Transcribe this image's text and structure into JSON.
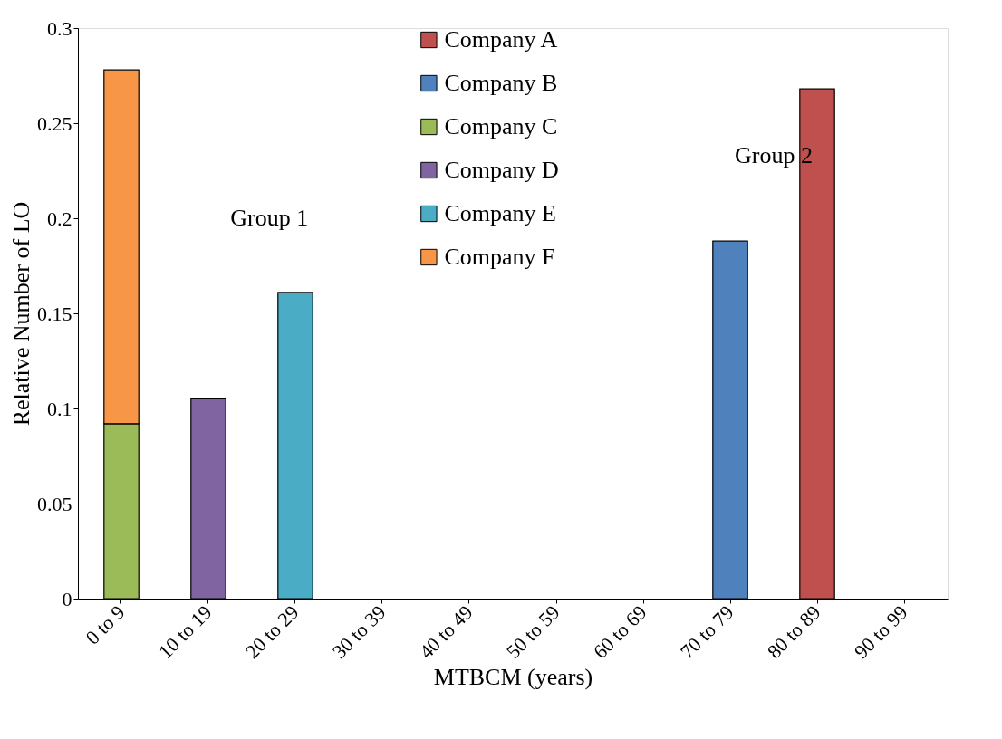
{
  "chart_data": {
    "type": "bar",
    "stacked": true,
    "xlabel": "MTBCM (years)",
    "ylabel": "Relative Number of LO",
    "categories": [
      "0 to 9",
      "10 to 19",
      "20 to 29",
      "30 to 39",
      "40 to 49",
      "50 to 59",
      "60 to 69",
      "70 to 79",
      "80 to 89",
      "90 to 99"
    ],
    "series": [
      {
        "name": "Company A",
        "color": "#c0504d",
        "values": [
          null,
          null,
          null,
          null,
          null,
          null,
          null,
          null,
          0.268,
          null
        ]
      },
      {
        "name": "Company B",
        "color": "#4f81bd",
        "values": [
          null,
          null,
          null,
          null,
          null,
          null,
          null,
          0.188,
          null,
          null
        ]
      },
      {
        "name": "Company C",
        "color": "#9bbb59",
        "values": [
          0.092,
          null,
          null,
          null,
          null,
          null,
          null,
          null,
          null,
          null
        ]
      },
      {
        "name": "Company D",
        "color": "#8064a2",
        "values": [
          null,
          0.105,
          null,
          null,
          null,
          null,
          null,
          null,
          null,
          null
        ]
      },
      {
        "name": "Company E",
        "color": "#4bacc6",
        "values": [
          null,
          null,
          0.161,
          null,
          null,
          null,
          null,
          null,
          null,
          null
        ]
      },
      {
        "name": "Company F",
        "color": "#f79646",
        "values": [
          0.186,
          null,
          null,
          null,
          null,
          null,
          null,
          null,
          null,
          null
        ]
      }
    ],
    "ylim": [
      0,
      0.3
    ],
    "yticks": [
      0,
      0.05,
      0.1,
      0.15,
      0.2,
      0.25,
      0.3
    ],
    "grid": false,
    "legend": "top",
    "annotations": [
      "Group 1",
      "Group 2"
    ]
  }
}
